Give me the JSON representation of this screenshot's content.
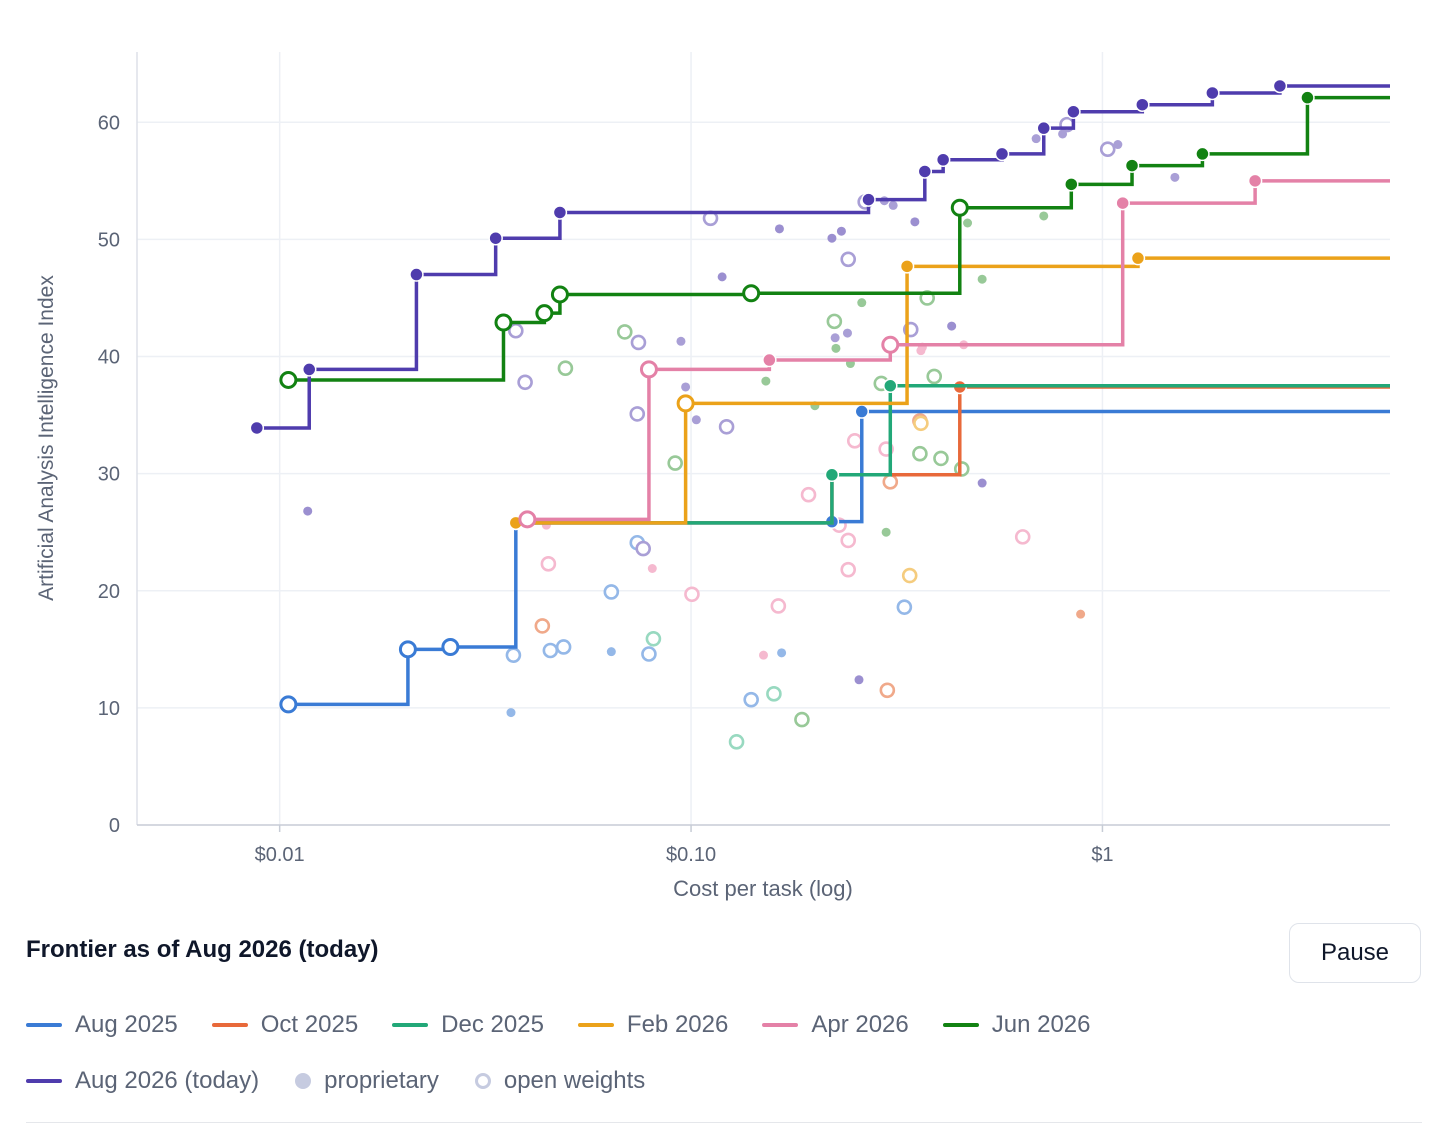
{
  "chart_data": {
    "type": "scatter",
    "title": "",
    "xlabel": "Cost per task (log)",
    "ylabel": "Artificial Analysis Intelligence Index",
    "x_scale": "log",
    "xlim": [
      0.0045,
      5.0
    ],
    "ylim": [
      0,
      66
    ],
    "x_ticks": [
      {
        "value": 0.01,
        "label": "$0.01"
      },
      {
        "value": 0.1,
        "label": "$0.10"
      },
      {
        "value": 1,
        "label": "$1"
      }
    ],
    "y_ticks": [
      0,
      10,
      20,
      30,
      40,
      50,
      60
    ],
    "grid": true,
    "series": [
      {
        "name": "Aug 2025",
        "color": "#3a7bd5",
        "x_end": 5.0,
        "points": [
          [
            0.0105,
            10.3,
            "open"
          ],
          [
            0.0205,
            15.0,
            "open"
          ],
          [
            0.026,
            15.2,
            "open"
          ],
          [
            0.0375,
            25.8,
            "prop"
          ],
          [
            0.22,
            25.9,
            "prop"
          ],
          [
            0.26,
            35.3,
            "prop"
          ]
        ]
      },
      {
        "name": "Oct 2025",
        "color": "#e8693a",
        "x_end": 5.0,
        "points": [
          [
            0.0375,
            25.8,
            "prop"
          ],
          [
            0.22,
            29.9,
            "prop"
          ],
          [
            0.45,
            37.4,
            "prop"
          ]
        ]
      },
      {
        "name": "Dec 2025",
        "color": "#22a878",
        "x_end": 5.0,
        "points": [
          [
            0.0375,
            25.8,
            "prop"
          ],
          [
            0.22,
            29.9,
            "prop"
          ],
          [
            0.305,
            37.5,
            "prop"
          ]
        ]
      },
      {
        "name": "Feb 2026",
        "color": "#eba21a",
        "x_end": 5.0,
        "points": [
          [
            0.0375,
            25.8,
            "prop"
          ],
          [
            0.097,
            36.0,
            "open"
          ],
          [
            0.335,
            47.7,
            "prop"
          ],
          [
            1.22,
            48.4,
            "prop"
          ]
        ]
      },
      {
        "name": "Apr 2026",
        "color": "#e481a7",
        "x_end": 5.0,
        "points": [
          [
            0.04,
            26.1,
            "open"
          ],
          [
            0.079,
            38.9,
            "open"
          ],
          [
            0.155,
            39.7,
            "prop"
          ],
          [
            0.305,
            41.0,
            "open"
          ],
          [
            1.12,
            53.1,
            "prop"
          ],
          [
            2.35,
            55.0,
            "prop"
          ]
        ]
      },
      {
        "name": "Jun 2026",
        "color": "#128212",
        "x_end": 5.0,
        "points": [
          [
            0.0105,
            38.0,
            "open"
          ],
          [
            0.035,
            42.9,
            "open"
          ],
          [
            0.044,
            43.7,
            "open"
          ],
          [
            0.048,
            45.3,
            "open"
          ],
          [
            0.14,
            45.4,
            "open"
          ],
          [
            0.45,
            52.7,
            "open"
          ],
          [
            0.84,
            54.7,
            "prop"
          ],
          [
            1.18,
            56.3,
            "prop"
          ],
          [
            1.75,
            57.3,
            "prop"
          ],
          [
            3.15,
            62.1,
            "prop"
          ]
        ]
      },
      {
        "name": "Aug 2026 (today)",
        "color": "#4f3cad",
        "x_end": 5.0,
        "points": [
          [
            0.0088,
            33.9,
            "prop"
          ],
          [
            0.0118,
            38.9,
            "prop"
          ],
          [
            0.0215,
            47.0,
            "prop"
          ],
          [
            0.0335,
            50.1,
            "prop"
          ],
          [
            0.048,
            52.3,
            "prop"
          ],
          [
            0.27,
            53.4,
            "prop"
          ],
          [
            0.37,
            55.8,
            "prop"
          ],
          [
            0.41,
            56.8,
            "prop"
          ],
          [
            0.57,
            57.3,
            "prop"
          ],
          [
            0.72,
            59.5,
            "prop"
          ],
          [
            0.85,
            60.9,
            "prop"
          ],
          [
            1.25,
            61.5,
            "prop"
          ],
          [
            1.85,
            62.5,
            "prop"
          ],
          [
            2.7,
            63.1,
            "prop"
          ]
        ]
      }
    ],
    "background_points": [
      {
        "x": 0.0117,
        "y": 26.8,
        "color": "#9b8fd0",
        "kind": "prop"
      },
      {
        "x": 0.0365,
        "y": 9.6,
        "color": "#94b8e8",
        "kind": "prop"
      },
      {
        "x": 0.037,
        "y": 14.5,
        "color": "#94b8e8",
        "kind": "open"
      },
      {
        "x": 0.0375,
        "y": 42.2,
        "color": "#a99fd6",
        "kind": "open"
      },
      {
        "x": 0.0395,
        "y": 37.8,
        "color": "#a99fd6",
        "kind": "open"
      },
      {
        "x": 0.0435,
        "y": 17.0,
        "color": "#f0a98a",
        "kind": "open"
      },
      {
        "x": 0.0445,
        "y": 25.6,
        "color": "#f5b9cf",
        "kind": "prop"
      },
      {
        "x": 0.045,
        "y": 22.3,
        "color": "#f5b9cf",
        "kind": "open"
      },
      {
        "x": 0.0455,
        "y": 14.9,
        "color": "#94b8e8",
        "kind": "open"
      },
      {
        "x": 0.049,
        "y": 15.2,
        "color": "#94b8e8",
        "kind": "open"
      },
      {
        "x": 0.0495,
        "y": 39.0,
        "color": "#98c998",
        "kind": "open"
      },
      {
        "x": 0.064,
        "y": 19.9,
        "color": "#94b8e8",
        "kind": "open"
      },
      {
        "x": 0.064,
        "y": 14.8,
        "color": "#94b8e8",
        "kind": "prop"
      },
      {
        "x": 0.069,
        "y": 42.1,
        "color": "#98c998",
        "kind": "open"
      },
      {
        "x": 0.074,
        "y": 35.1,
        "color": "#a99fd6",
        "kind": "open"
      },
      {
        "x": 0.074,
        "y": 24.1,
        "color": "#94b8e8",
        "kind": "open"
      },
      {
        "x": 0.0745,
        "y": 41.2,
        "color": "#a99fd6",
        "kind": "open"
      },
      {
        "x": 0.0765,
        "y": 23.6,
        "color": "#a99fd6",
        "kind": "open"
      },
      {
        "x": 0.079,
        "y": 14.6,
        "color": "#94b8e8",
        "kind": "open"
      },
      {
        "x": 0.0805,
        "y": 21.9,
        "color": "#f5b9cf",
        "kind": "prop"
      },
      {
        "x": 0.081,
        "y": 15.9,
        "color": "#98d9c0",
        "kind": "open"
      },
      {
        "x": 0.0915,
        "y": 30.9,
        "color": "#98c998",
        "kind": "open"
      },
      {
        "x": 0.0945,
        "y": 41.3,
        "color": "#a99fd6",
        "kind": "prop"
      },
      {
        "x": 0.097,
        "y": 37.4,
        "color": "#a99fd6",
        "kind": "prop"
      },
      {
        "x": 0.1005,
        "y": 19.7,
        "color": "#f5b9cf",
        "kind": "open"
      },
      {
        "x": 0.103,
        "y": 34.6,
        "color": "#a99fd6",
        "kind": "prop"
      },
      {
        "x": 0.1115,
        "y": 51.8,
        "color": "#a99fd6",
        "kind": "open"
      },
      {
        "x": 0.119,
        "y": 46.8,
        "color": "#9b8fd0",
        "kind": "prop"
      },
      {
        "x": 0.122,
        "y": 34.0,
        "color": "#a99fd6",
        "kind": "open"
      },
      {
        "x": 0.129,
        "y": 7.1,
        "color": "#98d9c0",
        "kind": "open"
      },
      {
        "x": 0.14,
        "y": 10.7,
        "color": "#94b8e8",
        "kind": "open"
      },
      {
        "x": 0.15,
        "y": 14.5,
        "color": "#f5b9cf",
        "kind": "prop"
      },
      {
        "x": 0.152,
        "y": 37.9,
        "color": "#98c998",
        "kind": "prop"
      },
      {
        "x": 0.159,
        "y": 11.2,
        "color": "#98d9c0",
        "kind": "open"
      },
      {
        "x": 0.163,
        "y": 18.7,
        "color": "#f5b9cf",
        "kind": "open"
      },
      {
        "x": 0.164,
        "y": 50.9,
        "color": "#9b8fd0",
        "kind": "prop"
      },
      {
        "x": 0.166,
        "y": 14.7,
        "color": "#94b8e8",
        "kind": "prop"
      },
      {
        "x": 0.186,
        "y": 9.0,
        "color": "#98c998",
        "kind": "open"
      },
      {
        "x": 0.193,
        "y": 28.2,
        "color": "#f5b9cf",
        "kind": "open"
      },
      {
        "x": 0.2,
        "y": 35.8,
        "color": "#98c998",
        "kind": "prop"
      },
      {
        "x": 0.22,
        "y": 50.1,
        "color": "#9b8fd0",
        "kind": "prop"
      },
      {
        "x": 0.223,
        "y": 43.0,
        "color": "#98c998",
        "kind": "open"
      },
      {
        "x": 0.224,
        "y": 41.6,
        "color": "#a99fd6",
        "kind": "prop"
      },
      {
        "x": 0.225,
        "y": 40.7,
        "color": "#98c998",
        "kind": "prop"
      },
      {
        "x": 0.229,
        "y": 25.6,
        "color": "#f5b9cf",
        "kind": "open"
      },
      {
        "x": 0.232,
        "y": 50.7,
        "color": "#9b8fd0",
        "kind": "prop"
      },
      {
        "x": 0.24,
        "y": 42.0,
        "color": "#a99fd6",
        "kind": "prop"
      },
      {
        "x": 0.241,
        "y": 48.3,
        "color": "#a99fd6",
        "kind": "open"
      },
      {
        "x": 0.241,
        "y": 24.3,
        "color": "#f5b9cf",
        "kind": "open"
      },
      {
        "x": 0.241,
        "y": 21.8,
        "color": "#f5b9cf",
        "kind": "open"
      },
      {
        "x": 0.244,
        "y": 39.4,
        "color": "#98c998",
        "kind": "prop"
      },
      {
        "x": 0.25,
        "y": 32.8,
        "color": "#f5b9cf",
        "kind": "open"
      },
      {
        "x": 0.256,
        "y": 12.4,
        "color": "#9b8fd0",
        "kind": "prop"
      },
      {
        "x": 0.26,
        "y": 44.6,
        "color": "#98c998",
        "kind": "prop"
      },
      {
        "x": 0.265,
        "y": 53.2,
        "color": "#a99fd6",
        "kind": "open"
      },
      {
        "x": 0.29,
        "y": 37.7,
        "color": "#98c998",
        "kind": "open"
      },
      {
        "x": 0.295,
        "y": 53.3,
        "color": "#a99fd6",
        "kind": "prop"
      },
      {
        "x": 0.298,
        "y": 25.0,
        "color": "#98c998",
        "kind": "prop"
      },
      {
        "x": 0.298,
        "y": 32.1,
        "color": "#f5b9cf",
        "kind": "open"
      },
      {
        "x": 0.3,
        "y": 11.5,
        "color": "#f0a98a",
        "kind": "open"
      },
      {
        "x": 0.305,
        "y": 29.3,
        "color": "#f0a98a",
        "kind": "open"
      },
      {
        "x": 0.31,
        "y": 52.9,
        "color": "#a99fd6",
        "kind": "prop"
      },
      {
        "x": 0.33,
        "y": 18.6,
        "color": "#94b8e8",
        "kind": "open"
      },
      {
        "x": 0.342,
        "y": 42.3,
        "color": "#a99fd6",
        "kind": "open"
      },
      {
        "x": 0.34,
        "y": 21.3,
        "color": "#f5cc7e",
        "kind": "open"
      },
      {
        "x": 0.35,
        "y": 51.5,
        "color": "#9b8fd0",
        "kind": "prop"
      },
      {
        "x": 0.36,
        "y": 34.5,
        "color": "#f0a98a",
        "kind": "open"
      },
      {
        "x": 0.362,
        "y": 34.3,
        "color": "#f5cc7e",
        "kind": "open"
      },
      {
        "x": 0.36,
        "y": 31.7,
        "color": "#98c998",
        "kind": "open"
      },
      {
        "x": 0.362,
        "y": 40.5,
        "color": "#f5b9cf",
        "kind": "prop"
      },
      {
        "x": 0.365,
        "y": 40.8,
        "color": "#f5b9cf",
        "kind": "prop"
      },
      {
        "x": 0.375,
        "y": 45.0,
        "color": "#98c998",
        "kind": "open"
      },
      {
        "x": 0.39,
        "y": 38.3,
        "color": "#98c998",
        "kind": "open"
      },
      {
        "x": 0.405,
        "y": 31.3,
        "color": "#98c998",
        "kind": "open"
      },
      {
        "x": 0.43,
        "y": 42.6,
        "color": "#9b8fd0",
        "kind": "prop"
      },
      {
        "x": 0.455,
        "y": 30.4,
        "color": "#98c998",
        "kind": "open"
      },
      {
        "x": 0.46,
        "y": 41.0,
        "color": "#f5b9cf",
        "kind": "prop"
      },
      {
        "x": 0.47,
        "y": 51.4,
        "color": "#98c998",
        "kind": "prop"
      },
      {
        "x": 0.51,
        "y": 46.6,
        "color": "#98c998",
        "kind": "prop"
      },
      {
        "x": 0.51,
        "y": 29.2,
        "color": "#9b8fd0",
        "kind": "prop"
      },
      {
        "x": 0.64,
        "y": 24.6,
        "color": "#f5b9cf",
        "kind": "open"
      },
      {
        "x": 0.69,
        "y": 58.6,
        "color": "#a99fd6",
        "kind": "prop"
      },
      {
        "x": 0.72,
        "y": 52.0,
        "color": "#98c998",
        "kind": "prop"
      },
      {
        "x": 0.8,
        "y": 59.0,
        "color": "#a99fd6",
        "kind": "prop"
      },
      {
        "x": 0.82,
        "y": 59.8,
        "color": "#a99fd6",
        "kind": "open"
      },
      {
        "x": 0.885,
        "y": 18.0,
        "color": "#f0a98a",
        "kind": "prop"
      },
      {
        "x": 1.03,
        "y": 57.7,
        "color": "#a99fd6",
        "kind": "open"
      },
      {
        "x": 1.09,
        "y": 58.1,
        "color": "#a99fd6",
        "kind": "prop"
      },
      {
        "x": 1.5,
        "y": 55.3,
        "color": "#a99fd6",
        "kind": "prop"
      }
    ]
  },
  "controls": {
    "frontier_label": "Frontier as of Aug 2026 (today)",
    "pause_label": "Pause"
  },
  "legend": {
    "items": [
      {
        "label": "Aug 2025",
        "color": "#3a7bd5",
        "kind": "line"
      },
      {
        "label": "Oct 2025",
        "color": "#e8693a",
        "kind": "line"
      },
      {
        "label": "Dec 2025",
        "color": "#22a878",
        "kind": "line"
      },
      {
        "label": "Feb 2026",
        "color": "#eba21a",
        "kind": "line"
      },
      {
        "label": "Apr 2026",
        "color": "#e481a7",
        "kind": "line"
      },
      {
        "label": "Jun 2026",
        "color": "#128212",
        "kind": "line"
      },
      {
        "label": "Aug 2026 (today)",
        "color": "#4f3cad",
        "kind": "line"
      },
      {
        "label": "proprietary",
        "color": "#c6cbe0",
        "kind": "dot"
      },
      {
        "label": "open weights",
        "color": "#c6cbe0",
        "kind": "ring"
      }
    ]
  }
}
